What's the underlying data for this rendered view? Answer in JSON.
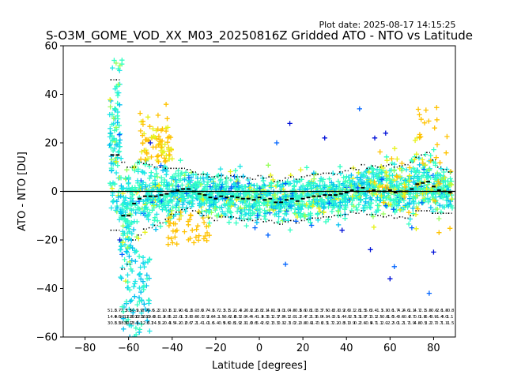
{
  "chart_data": {
    "type": "scatter",
    "plot_date": "Plot date: 2025-08-17 14:15:25",
    "title": "S-O3M_GOME_VOD_XX_M03_20250816Z Gridded ATO - NTO vs Latitude",
    "xlabel": "Latitude [degrees]",
    "ylabel": "ATO - NTO [DU]",
    "xlim": [
      -90,
      90
    ],
    "ylim": [
      -60,
      60
    ],
    "xticks": [
      -80,
      -60,
      -40,
      -20,
      0,
      20,
      40,
      60,
      80
    ],
    "xtick_labels": [
      "−80",
      "−60",
      "−40",
      "−20",
      "0",
      "20",
      "40",
      "60",
      "80"
    ],
    "yticks": [
      -60,
      -40,
      -20,
      0,
      20,
      40,
      60
    ],
    "ytick_labels": [
      "−60",
      "−40",
      "−20",
      "0",
      "20",
      "40",
      "60"
    ],
    "grid": false,
    "zero_line": 0,
    "marker": "+",
    "bin_width_deg": 2.5,
    "colors": {
      "cyan": "#1ce6e6",
      "turquoise": "#33ffc3",
      "sky_blue": "#00c0f0",
      "gold": "#ffc200",
      "yellow": "#e6f21a",
      "light_green": "#96ff5a",
      "dark_blue": "#0010d8",
      "royal_blue": "#0064ff"
    },
    "bin_centers": [
      -67.5,
      -65.0,
      -62.5,
      -60.0,
      -57.5,
      -55.0,
      -52.5,
      -50.0,
      -47.5,
      -45.0,
      -42.5,
      -40.0,
      -37.5,
      -35.0,
      -32.5,
      -30.0,
      -27.5,
      -25.0,
      -22.5,
      -20.0,
      -17.5,
      -15.0,
      -12.5,
      -10.0,
      -7.5,
      -5.0,
      -2.5,
      0.0,
      2.5,
      5.0,
      7.5,
      10.0,
      12.5,
      15.0,
      17.5,
      20.0,
      22.5,
      25.0,
      27.5,
      30.0,
      32.5,
      35.0,
      37.5,
      40.0,
      42.5,
      45.0,
      47.5,
      50.0,
      52.5,
      55.0,
      57.5,
      60.0,
      62.5,
      65.0,
      67.5,
      70.0,
      72.5,
      75.0,
      77.5,
      80.0,
      82.5,
      85.0,
      87.5
    ],
    "bin_mean": [
      15.0,
      15.0,
      -10.0,
      -10.0,
      -5.0,
      -3.0,
      -2.0,
      -2.0,
      -2.0,
      -1.5,
      -1.0,
      0.0,
      0.5,
      1.0,
      1.0,
      0.0,
      -1.0,
      -1.5,
      -2.5,
      -3.0,
      -2.0,
      -2.5,
      -2.0,
      -2.5,
      -3.0,
      -3.0,
      -3.5,
      -2.5,
      -3.5,
      -3.0,
      -4.5,
      -4.5,
      -3.5,
      -3.0,
      -4.0,
      -3.0,
      -2.5,
      -2.0,
      -2.0,
      -1.5,
      -1.5,
      -1.5,
      -1.0,
      -0.5,
      0.5,
      0.0,
      1.5,
      0.0,
      0.5,
      0.0,
      0.0,
      0.5,
      -0.5,
      0.0,
      0.0,
      1.0,
      3.0,
      3.5,
      4.0,
      2.0,
      0.5,
      0.0,
      -0.5
    ],
    "bin_std": [
      31.0,
      31.0,
      22.0,
      20.0,
      15.0,
      15.0,
      13.5,
      13.0,
      12.0,
      11.5,
      10.5,
      9.5,
      9.0,
      8.5,
      8.0,
      8.0,
      8.0,
      8.5,
      8.5,
      9.0,
      8.5,
      8.0,
      8.5,
      8.5,
      9.0,
      8.5,
      8.5,
      9.0,
      9.0,
      9.0,
      8.5,
      9.0,
      9.0,
      9.0,
      9.0,
      9.0,
      9.0,
      9.0,
      9.0,
      9.0,
      9.0,
      8.5,
      9.0,
      9.0,
      9.0,
      9.0,
      9.5,
      9.5,
      10.0,
      10.0,
      10.5,
      10.5,
      10.5,
      10.5,
      11.0,
      11.0,
      11.0,
      11.5,
      12.0,
      11.0,
      9.5,
      9.0,
      8.5
    ],
    "bin_stats_text": [
      "51.3 14.9 30.3",
      "8.7 4.5 8.5",
      "-7.3 -30.1 28.3",
      "3.5 12.6 30.2",
      "10.9 20.0 13.1",
      "1.9 12.1 5.1",
      "0.7 16.0 12.6",
      "-0.6 19.0 3.2",
      "5.2 -0.1 14.5",
      "2.1 -1.2 2.2",
      "-0.1 4.8 -0.4",
      "8.1 5.2 3.5",
      "2.9 -2.0 4.2",
      "-0.6 -1.1 -0.2",
      "-1.2 3.8 0.6",
      "6.0 0.6 7.2",
      "-3.6 -6.7 1.4",
      "0.7 -2.9 -1.0",
      "-4.1 2.6 -1.6",
      "6.7 -4.2 5.4",
      "-2.3 1.5 -0.9",
      "3.1 -6.6 5.6",
      "5.2 -2.8 0.8",
      "-1.4 6.3 1.9",
      "0.2 2.0 2.3",
      "-6.6 4.4 -1.0",
      "2.2 4.4 0.6",
      "6.8 -1.3 5.4",
      "2.1 4.3 2.6",
      "4.8 3.1 2.1",
      "-1.9 2.3 3.3",
      "3.0 7.8 0.3",
      "1.0 4.1 -2.1",
      "4.8 2.0 3.0",
      "-0.3 -1.2 2.2",
      "6.6 2.4 0.8",
      "0.8 7.2 -0.9",
      "1.0 1.3 -1.7",
      "3.3 6.0 -0.6",
      "7.5 4.3 2.3",
      "-0.8 -4.1 1.7",
      "-2.3 -3.9 2.2",
      "-0.9 1.4 -0.8",
      "2.6 -4.5 3.1",
      "0.1 -2.3 0.9",
      "2.8 5.3 0.2",
      "1.5 1.8 2.6",
      "5.6 7.1 -0.9",
      "3.4 3.1 4.7",
      "-1.1 2.5 1.1",
      "5.3 -0.8 2.0",
      "-0.6 -1.0 -2.2",
      "1.7 5.4 3.0",
      "4.2 0.6 1.2",
      "4.6 -0.4 1.7",
      "1.1 2.7 1.9",
      "4.7 0.0 4.8",
      "2.1 1.8 -0.5",
      "5.8 6.4 2.2",
      "-0.6 3.9 2.7",
      "-2.6 -1.4 0.7",
      "1.8 4.0 1.3",
      "-0.8 1.1 -1.5"
    ]
  }
}
